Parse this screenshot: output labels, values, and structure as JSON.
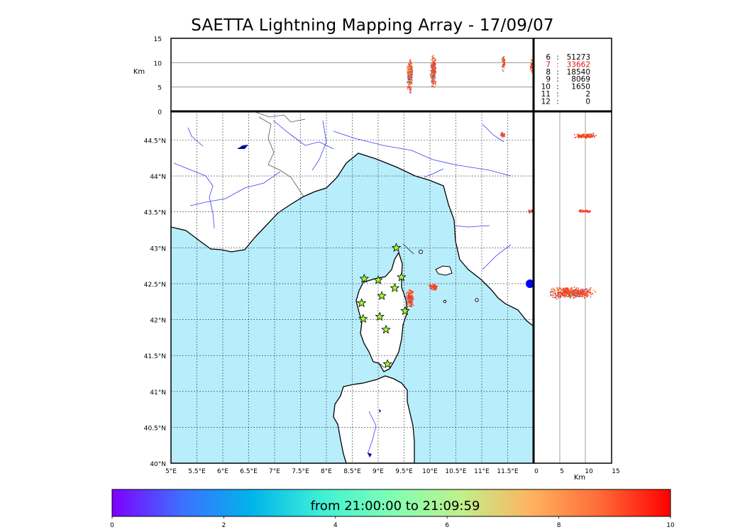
{
  "title": "SAETTA Lightning Mapping Array - 17/09/07",
  "map": {
    "lon_range": [
      5,
      12
    ],
    "lat_range": [
      40,
      44.9
    ],
    "lon_ticks": [
      "5°E",
      "5.5°E",
      "6°E",
      "6.5°E",
      "7°E",
      "7.5°E",
      "8°E",
      "8.5°E",
      "9°E",
      "9.5°E",
      "10°E",
      "10.5°E",
      "11°E",
      "11.5°E"
    ],
    "lat_ticks": [
      "40°N",
      "40.5°N",
      "41°N",
      "41.5°N",
      "42°N",
      "42.5°N",
      "43°N",
      "43.5°N",
      "44°N",
      "44.5°N"
    ],
    "sea_color": "#b8eefc",
    "grid": true
  },
  "altitude_panel": {
    "ylabel": "Km",
    "ticks": [
      "0",
      "5",
      "10",
      "15"
    ],
    "range": [
      0,
      15
    ]
  },
  "side_panel": {
    "xlabel": "Km",
    "ticks": [
      "0",
      "5",
      "10",
      "15"
    ],
    "range": [
      0,
      15
    ]
  },
  "stations": [
    {
      "lon": 9.35,
      "lat": 43.0
    },
    {
      "lon": 8.73,
      "lat": 42.57
    },
    {
      "lon": 9.0,
      "lat": 42.55
    },
    {
      "lon": 9.45,
      "lat": 42.59
    },
    {
      "lon": 9.32,
      "lat": 42.44
    },
    {
      "lon": 9.07,
      "lat": 42.33
    },
    {
      "lon": 8.68,
      "lat": 42.23
    },
    {
      "lon": 9.52,
      "lat": 42.12
    },
    {
      "lon": 9.03,
      "lat": 42.04
    },
    {
      "lon": 8.71,
      "lat": 42.01
    },
    {
      "lon": 9.15,
      "lat": 41.86
    },
    {
      "lon": 9.18,
      "lat": 41.38
    }
  ],
  "counts": [
    {
      "k": "6",
      "v": "51273",
      "color": "#000000"
    },
    {
      "k": "7",
      "v": "33662",
      "color": "#e01010"
    },
    {
      "k": "8",
      "v": "18540",
      "color": "#000000"
    },
    {
      "k": "9",
      "v": "8069",
      "color": "#000000"
    },
    {
      "k": "10",
      "v": "1650",
      "color": "#000000"
    },
    {
      "k": "11",
      "v": "2",
      "color": "#000000"
    },
    {
      "k": "12",
      "v": "0",
      "color": "#000000"
    }
  ],
  "colorbar": {
    "label": "from 21:00:00 to 21:09:59",
    "ticks": [
      "0",
      "2",
      "4",
      "6",
      "8",
      "10"
    ],
    "range": [
      0,
      10
    ],
    "colors": [
      "#7f00ff",
      "#3d70ff",
      "#00b4eb",
      "#3ff0d6",
      "#80ffb4",
      "#c0f08a",
      "#ffb360",
      "#ff6a36",
      "#ff0000"
    ]
  }
}
